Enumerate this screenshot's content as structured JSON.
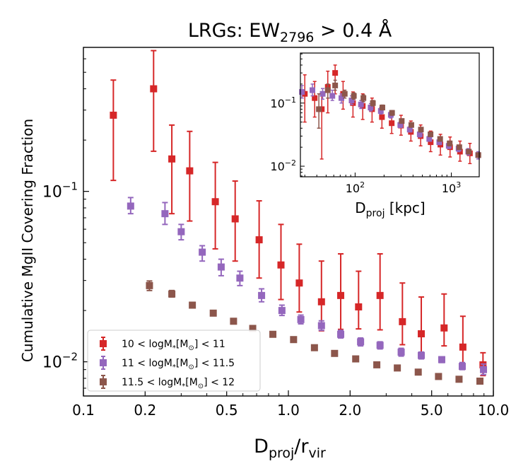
{
  "chart_data": {
    "type": "scatter",
    "title": {
      "main": "LRGs: EW",
      "sub": "2796",
      "rest": " > 0.4 Å"
    },
    "xlabel": {
      "main": "D",
      "sub1": "proj",
      "mid": "/r",
      "sub2": "vir"
    },
    "ylabel": "Cumulative MgII Covering Fraction",
    "xscale": "log",
    "yscale": "log",
    "xlim": [
      0.1,
      10.0
    ],
    "ylim": [
      0.0063,
      0.7
    ],
    "xticks": [
      0.1,
      0.2,
      0.5,
      1.0,
      2.0,
      5.0,
      10.0
    ],
    "xtick_labels": [
      "0.1",
      "0.2",
      "0.5",
      "1.0",
      "2.0",
      "5.0",
      "10.0"
    ],
    "ytick_labels": [
      {
        "value": 0.1,
        "base": "10",
        "exp": "−1"
      },
      {
        "value": 0.01,
        "base": "10",
        "exp": "−2"
      }
    ],
    "legend_position": "lower-left",
    "series": [
      {
        "name": "10 < logM*[M⊙] < 11",
        "label": {
          "pre": "10 < logM",
          "star": "*",
          "mid": "[M",
          "sun": "⊙",
          "post": "] < 11"
        },
        "color": "#d62728",
        "x": [
          0.14,
          0.22,
          0.27,
          0.33,
          0.44,
          0.55,
          0.72,
          0.92,
          1.13,
          1.45,
          1.8,
          2.2,
          2.8,
          3.6,
          4.45,
          5.75,
          7.1,
          8.9
        ],
        "y": [
          0.28,
          0.4,
          0.155,
          0.132,
          0.087,
          0.069,
          0.052,
          0.037,
          0.029,
          0.0225,
          0.0245,
          0.021,
          0.0245,
          0.0172,
          0.0146,
          0.0158,
          0.0122,
          0.0096
        ],
        "y_low": [
          0.116,
          0.172,
          0.074,
          0.067,
          0.046,
          0.039,
          0.031,
          0.0232,
          0.0196,
          0.0152,
          0.0155,
          0.0156,
          0.0154,
          0.0126,
          0.0113,
          0.0124,
          0.0097,
          0.0083
        ],
        "y_high": [
          0.45,
          0.67,
          0.245,
          0.225,
          0.148,
          0.115,
          0.088,
          0.064,
          0.049,
          0.039,
          0.043,
          0.034,
          0.043,
          0.029,
          0.024,
          0.025,
          0.0185,
          0.0113
        ]
      },
      {
        "name": "11 < logM*[M⊙] < 11.5",
        "label": {
          "pre": "11 < logM",
          "star": "*",
          "mid": "[M",
          "sun": "⊙",
          "post": "] < 11.5"
        },
        "color": "#9467bd",
        "x": [
          0.17,
          0.25,
          0.3,
          0.38,
          0.47,
          0.58,
          0.74,
          0.93,
          1.15,
          1.45,
          1.8,
          2.25,
          2.8,
          3.55,
          4.45,
          5.6,
          7.05,
          8.95
        ],
        "y": [
          0.082,
          0.074,
          0.058,
          0.044,
          0.036,
          0.031,
          0.0245,
          0.02,
          0.0177,
          0.0163,
          0.0145,
          0.0131,
          0.0125,
          0.0114,
          0.0109,
          0.0103,
          0.0094,
          0.009
        ],
        "y_low": [
          0.074,
          0.064,
          0.052,
          0.039,
          0.032,
          0.028,
          0.0225,
          0.0187,
          0.0167,
          0.0153,
          0.0138,
          0.0124,
          0.0119,
          0.0108,
          0.0104,
          0.0099,
          0.009,
          0.0084
        ],
        "y_high": [
          0.092,
          0.086,
          0.064,
          0.048,
          0.04,
          0.034,
          0.0268,
          0.0215,
          0.0188,
          0.0174,
          0.0153,
          0.0138,
          0.0131,
          0.012,
          0.0114,
          0.0107,
          0.0099,
          0.0097
        ]
      },
      {
        "name": "11.5 < logM*[M⊙] < 12",
        "label": {
          "pre": "11.5 < logM",
          "star": "*",
          "mid": "[M",
          "sun": "⊙",
          "post": "] < 12"
        },
        "color": "#8c564b",
        "x": [
          0.21,
          0.27,
          0.34,
          0.43,
          0.54,
          0.67,
          0.84,
          1.06,
          1.34,
          1.68,
          2.13,
          2.7,
          3.4,
          4.3,
          5.4,
          6.8,
          8.6
        ],
        "y": [
          0.028,
          0.025,
          0.0215,
          0.0193,
          0.0173,
          0.0157,
          0.0145,
          0.0135,
          0.0121,
          0.0112,
          0.0104,
          0.0096,
          0.0092,
          0.0087,
          0.0082,
          0.0079,
          0.0077
        ],
        "y_low": [
          0.0262,
          0.024,
          0.0208,
          0.0188,
          0.0169,
          0.0154,
          0.0142,
          0.0132,
          0.0119,
          0.011,
          0.0102,
          0.0094,
          0.009,
          0.0085,
          0.008,
          0.0077,
          0.0075
        ],
        "y_high": [
          0.0298,
          0.0262,
          0.0223,
          0.0199,
          0.0178,
          0.0161,
          0.0148,
          0.0138,
          0.0124,
          0.0114,
          0.0106,
          0.0098,
          0.0094,
          0.0089,
          0.0084,
          0.0081,
          0.0079
        ]
      }
    ],
    "inset": {
      "xlabel": {
        "main": "D",
        "sub": "proj",
        "rest": " [kpc]"
      },
      "xscale": "log",
      "yscale": "log",
      "xlim": [
        27,
        1950
      ],
      "ylim": [
        0.0068,
        0.62
      ],
      "xtick_labels": [
        {
          "value": 100,
          "base": "10",
          "exp": "2"
        },
        {
          "value": 1000,
          "base": "10",
          "exp": "3"
        }
      ],
      "ytick_labels": [
        {
          "value": 0.1,
          "base": "10",
          "exp": "−1"
        },
        {
          "value": 0.01,
          "base": "10",
          "exp": "−2"
        }
      ],
      "series": [
        {
          "name": "10 < logM*[M⊙] < 11",
          "color": "#d62728",
          "x": [
            30,
            38,
            45,
            52,
            62,
            75,
            95,
            120,
            150,
            190,
            240,
            300,
            380,
            480,
            610,
            770,
            970,
            1230,
            1560
          ],
          "y": [
            0.14,
            0.12,
            0.08,
            0.18,
            0.3,
            0.14,
            0.1,
            0.09,
            0.08,
            0.06,
            0.048,
            0.044,
            0.035,
            0.03,
            0.024,
            0.022,
            0.02,
            0.017,
            0.016
          ],
          "y_low": [
            0.05,
            0.06,
            0.013,
            0.07,
            0.14,
            0.08,
            0.06,
            0.055,
            0.05,
            0.04,
            0.033,
            0.031,
            0.025,
            0.021,
            0.017,
            0.015,
            0.014,
            0.012,
            0.011
          ],
          "y_high": [
            0.28,
            0.22,
            0.15,
            0.32,
            0.4,
            0.22,
            0.15,
            0.14,
            0.12,
            0.09,
            0.07,
            0.064,
            0.052,
            0.045,
            0.036,
            0.032,
            0.029,
            0.025,
            0.023
          ]
        },
        {
          "name": "11 < logM*[M⊙] < 11.5",
          "color": "#9467bd",
          "x": [
            28,
            36,
            46,
            58,
            72,
            92,
            115,
            145,
            185,
            235,
            295,
            370,
            470,
            590,
            750,
            940,
            1190,
            1500,
            1900
          ],
          "y": [
            0.15,
            0.16,
            0.14,
            0.13,
            0.12,
            0.11,
            0.095,
            0.085,
            0.075,
            0.065,
            0.045,
            0.038,
            0.032,
            0.027,
            0.024,
            0.021,
            0.019,
            0.017,
            0.015
          ],
          "y_low": [
            0.12,
            0.13,
            0.115,
            0.11,
            0.1,
            0.095,
            0.082,
            0.075,
            0.067,
            0.058,
            0.041,
            0.035,
            0.029,
            0.025,
            0.022,
            0.019,
            0.017,
            0.015,
            0.013
          ],
          "y_high": [
            0.19,
            0.2,
            0.17,
            0.16,
            0.14,
            0.13,
            0.11,
            0.098,
            0.085,
            0.072,
            0.05,
            0.042,
            0.035,
            0.03,
            0.026,
            0.023,
            0.021,
            0.019,
            0.017
          ]
        },
        {
          "name": "11.5 < logM*[M⊙] < 12",
          "color": "#8c564b",
          "x": [
            42,
            52,
            62,
            78,
            97,
            122,
            153,
            192,
            242,
            305,
            384,
            483,
            608,
            765,
            962,
            1210,
            1520,
            1910
          ],
          "y": [
            0.08,
            0.16,
            0.19,
            0.14,
            0.13,
            0.12,
            0.1,
            0.085,
            0.07,
            0.052,
            0.045,
            0.038,
            0.032,
            0.027,
            0.023,
            0.02,
            0.017,
            0.015
          ],
          "y_low": [
            0.04,
            0.12,
            0.16,
            0.12,
            0.115,
            0.105,
            0.09,
            0.078,
            0.064,
            0.048,
            0.042,
            0.035,
            0.03,
            0.025,
            0.021,
            0.019,
            0.016,
            0.014
          ],
          "y_high": [
            0.14,
            0.2,
            0.23,
            0.16,
            0.145,
            0.135,
            0.11,
            0.093,
            0.076,
            0.056,
            0.048,
            0.041,
            0.034,
            0.029,
            0.025,
            0.021,
            0.018,
            0.016
          ]
        }
      ]
    }
  }
}
